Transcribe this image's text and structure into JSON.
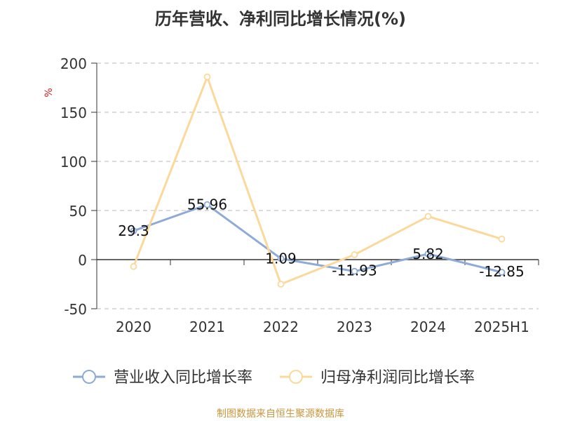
{
  "chart_data": {
    "type": "line",
    "title": "历年营收、净利同比增长情况(%)",
    "unit": "%",
    "categories": [
      "2020",
      "2021",
      "2022",
      "2023",
      "2024",
      "2025H1"
    ],
    "ylim": [
      -50,
      200
    ],
    "yticks": [
      "-50",
      "0",
      "50",
      "100",
      "150",
      "200"
    ],
    "grid": true,
    "legend_position": "bottom",
    "series": [
      {
        "name": "营业收入同比增长率",
        "color": "#8eaad7",
        "values": [
          29.3,
          55.96,
          1.09,
          -11.93,
          5.82,
          -12.85
        ],
        "labels": [
          "29.3",
          "55.96",
          "1.09",
          "-11.93",
          "5.82",
          "-12.85"
        ]
      },
      {
        "name": "归母净利润同比增长率",
        "color": "#fbd99b",
        "values": [
          -7,
          186,
          -25,
          5,
          44,
          21
        ],
        "labels": []
      }
    ]
  },
  "source": "制图数据来自恒生聚源数据库"
}
